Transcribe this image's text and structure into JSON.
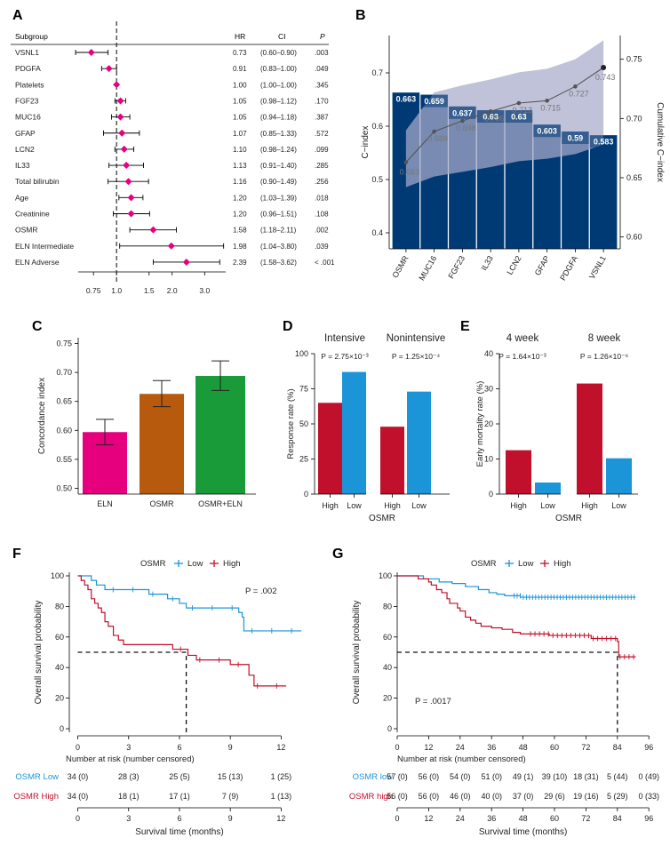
{
  "colors": {
    "navy": "#003a75",
    "magenta": "#e6007e",
    "orange": "#b85a0d",
    "green": "#1a9b3a",
    "red": "#c0102b",
    "blue": "#1b95d8",
    "band": "#a8aacb",
    "grey": "#555555"
  },
  "panels": {
    "A": "A",
    "B": "B",
    "C": "C",
    "D": "D",
    "E": "E",
    "F": "F",
    "G": "G"
  },
  "forest": {
    "headers": {
      "subgroup": "Subgroup",
      "hr": "HR",
      "ci": "CI",
      "p": "P"
    },
    "rows": [
      {
        "name": "VSNL1",
        "hr": 0.73,
        "lo": 0.6,
        "hi": 0.9,
        "hr_text": "0.73",
        "ci_text": "(0.60–0.90)",
        "p_text": ".003"
      },
      {
        "name": "PDGFA",
        "hr": 0.91,
        "lo": 0.83,
        "hi": 1.0,
        "hr_text": "0.91",
        "ci_text": "(0.83–1.00)",
        "p_text": ".049"
      },
      {
        "name": "Platelets",
        "hr": 1.0,
        "lo": 1.0,
        "hi": 1.0,
        "hr_text": "1.00",
        "ci_text": "(1.00–1.00)",
        "p_text": ".345"
      },
      {
        "name": "FGF23",
        "hr": 1.05,
        "lo": 0.98,
        "hi": 1.12,
        "hr_text": "1.05",
        "ci_text": "(0.98–1.12)",
        "p_text": ".170"
      },
      {
        "name": "MUC16",
        "hr": 1.05,
        "lo": 0.94,
        "hi": 1.18,
        "hr_text": "1.05",
        "ci_text": "(0.94–1.18)",
        "p_text": ".387"
      },
      {
        "name": "GFAP",
        "hr": 1.07,
        "lo": 0.85,
        "hi": 1.33,
        "hr_text": "1.07",
        "ci_text": "(0.85–1.33)",
        "p_text": ".572"
      },
      {
        "name": "LCN2",
        "hr": 1.1,
        "lo": 0.98,
        "hi": 1.24,
        "hr_text": "1.10",
        "ci_text": "(0.98–1.24)",
        "p_text": ".099"
      },
      {
        "name": "IL33",
        "hr": 1.13,
        "lo": 0.91,
        "hi": 1.4,
        "hr_text": "1.13",
        "ci_text": "(0.91–1.40)",
        "p_text": ".285"
      },
      {
        "name": "Total bilirubin",
        "hr": 1.16,
        "lo": 0.9,
        "hi": 1.49,
        "hr_text": "1.16",
        "ci_text": "(0.90–1.49)",
        "p_text": ".256"
      },
      {
        "name": "Age",
        "hr": 1.2,
        "lo": 1.03,
        "hi": 1.39,
        "hr_text": "1.20",
        "ci_text": "(1.03–1.39)",
        "p_text": ".018"
      },
      {
        "name": "Creatinine",
        "hr": 1.2,
        "lo": 0.96,
        "hi": 1.51,
        "hr_text": "1.20",
        "ci_text": "(0.96–1.51)",
        "p_text": ".108"
      },
      {
        "name": "OSMR",
        "hr": 1.58,
        "lo": 1.18,
        "hi": 2.11,
        "hr_text": "1.58",
        "ci_text": "(1.18–2.11)",
        "p_text": ".002"
      },
      {
        "name": "ELN Intermediate",
        "hr": 1.98,
        "lo": 1.04,
        "hi": 3.8,
        "hr_text": "1.98",
        "ci_text": "(1.04–3.80)",
        "p_text": ".039"
      },
      {
        "name": "ELN Adverse",
        "hr": 2.39,
        "lo": 1.58,
        "hi": 3.62,
        "hr_text": "2.39",
        "ci_text": "(1.58–3.62)",
        "p_text": "< .001"
      }
    ],
    "ticks": [
      {
        "v": 0.75,
        "label": "0.75"
      },
      {
        "v": 1.0,
        "label": "1.0"
      },
      {
        "v": 1.5,
        "label": "1.5"
      },
      {
        "v": 2.0,
        "label": "2.0"
      },
      {
        "v": 3.0,
        "label": "3.0"
      }
    ]
  },
  "chart_data": [
    {
      "id": "B",
      "type": "bar",
      "categories": [
        "OSMR",
        "MUC16",
        "FGF23",
        "IL33",
        "LCN2",
        "GFAP",
        "PDGFA",
        "VSNL1"
      ],
      "values": [
        0.663,
        0.659,
        0.637,
        0.63,
        0.63,
        0.603,
        0.59,
        0.583
      ],
      "value_labels": [
        "0.663",
        "0.659",
        "0.637",
        "0.63",
        "0.63",
        "0.603",
        "0.59",
        "0.583"
      ],
      "cumulative": [
        0.663,
        0.689,
        0.698,
        0.706,
        0.713,
        0.715,
        0.727,
        0.743
      ],
      "cumulative_labels": [
        "0.663",
        "0.689",
        "0.698",
        "0.706",
        "0.713",
        "0.715",
        "0.727",
        "0.743"
      ],
      "band_lower": [
        0.642,
        0.651,
        0.655,
        0.659,
        0.664,
        0.666,
        0.67,
        0.678
      ],
      "band_upper": [
        0.69,
        0.722,
        0.728,
        0.733,
        0.739,
        0.742,
        0.75,
        0.766
      ],
      "ylabel": "C−index",
      "y2label": "Cumulative C−index",
      "ylim": [
        0.37,
        0.77
      ],
      "y2lim": [
        0.59,
        0.77
      ],
      "yticks": [
        "0.4",
        "0.5",
        "0.6",
        "0.7"
      ],
      "y2ticks": [
        "0.60",
        "0.65",
        "0.70",
        "0.75"
      ]
    },
    {
      "id": "C",
      "type": "bar",
      "categories": [
        "ELN",
        "OSMR",
        "OSMR+ELN"
      ],
      "values": [
        0.597,
        0.663,
        0.694
      ],
      "err_lo": [
        0.575,
        0.641,
        0.669
      ],
      "err_hi": [
        0.619,
        0.686,
        0.72
      ],
      "ylabel": "Concordance index",
      "ylim": [
        0.49,
        0.76
      ],
      "yticks": [
        "0.50",
        "0.55",
        "0.60",
        "0.65",
        "0.70",
        "0.75"
      ]
    },
    {
      "id": "D",
      "type": "bar",
      "groups": [
        "Intensive",
        "Nonintensive"
      ],
      "pvals": [
        "P = 2.75×10⁻³",
        "P = 1.25×10⁻⁴"
      ],
      "categories": [
        "High",
        "Low",
        "High",
        "Low"
      ],
      "values": [
        65,
        87,
        48,
        73
      ],
      "ylabel": "Response rate (%)",
      "xlabel": "OSMR",
      "ylim": [
        0,
        100
      ],
      "yticks": [
        "0",
        "25",
        "50",
        "75",
        "100"
      ]
    },
    {
      "id": "E",
      "type": "bar",
      "groups": [
        "4 week",
        "8 week"
      ],
      "pvals": [
        "P = 1.64×10⁻³",
        "P = 1.26×10⁻⁶"
      ],
      "categories": [
        "High",
        "Low",
        "High",
        "Low"
      ],
      "values": [
        12.5,
        3.3,
        31.5,
        10.2
      ],
      "ylabel": "Early mortality rate (%)",
      "xlabel": "OSMR",
      "ylim": [
        0,
        40
      ],
      "yticks": [
        "0",
        "10",
        "20",
        "30",
        "40"
      ]
    },
    {
      "id": "F",
      "type": "line",
      "title": "OSMR",
      "legend": [
        "Low",
        "High"
      ],
      "pval": "P = .002",
      "xlabel": "Survival time (months)",
      "ylabel": "Overall survival probability",
      "xlim": [
        -0.5,
        13.5
      ],
      "ylim": [
        0,
        100
      ],
      "xticks": [
        "0",
        "3",
        "6",
        "9",
        "12"
      ],
      "yticks": [
        "0",
        "20",
        "40",
        "60",
        "80",
        "100"
      ],
      "median_x": 6.4,
      "series": [
        {
          "name": "Low",
          "steps": [
            [
              0,
              100
            ],
            [
              0.8,
              97
            ],
            [
              1.1,
              94
            ],
            [
              1.6,
              91
            ],
            [
              4.2,
              88
            ],
            [
              5.3,
              85
            ],
            [
              6.0,
              82
            ],
            [
              6.4,
              79
            ],
            [
              9.5,
              76
            ],
            [
              9.7,
              73
            ],
            [
              9.8,
              64
            ],
            [
              13.2,
              64
            ]
          ]
        },
        {
          "name": "High",
          "steps": [
            [
              0,
              100
            ],
            [
              0.2,
              97
            ],
            [
              0.4,
              94
            ],
            [
              0.6,
              91
            ],
            [
              0.8,
              85
            ],
            [
              1.0,
              82
            ],
            [
              1.2,
              79
            ],
            [
              1.4,
              76
            ],
            [
              1.6,
              70
            ],
            [
              1.8,
              67
            ],
            [
              2.1,
              61
            ],
            [
              2.4,
              58
            ],
            [
              2.7,
              55
            ],
            [
              5.6,
              52
            ],
            [
              6.5,
              48
            ],
            [
              7.0,
              45
            ],
            [
              9.0,
              42
            ],
            [
              10.1,
              35
            ],
            [
              10.4,
              28
            ],
            [
              12.3,
              28
            ]
          ]
        }
      ]
    },
    {
      "id": "G",
      "type": "line",
      "title": "OSMR",
      "legend": [
        "Low",
        "High"
      ],
      "pval": "P = .0017",
      "xlabel": "Survival time (months)",
      "ylabel": "Overall survival probability",
      "xlim": [
        0,
        100
      ],
      "ylim": [
        0,
        100
      ],
      "xticks": [
        "0",
        "12",
        "24",
        "36",
        "48",
        "60",
        "72",
        "84",
        "96"
      ],
      "yticks": [
        "0",
        "20",
        "40",
        "60",
        "80",
        "100"
      ],
      "median_x": 84,
      "series": [
        {
          "name": "Low",
          "steps": [
            [
              0,
              100
            ],
            [
              10,
              98
            ],
            [
              16,
              96
            ],
            [
              21,
              95
            ],
            [
              26,
              93
            ],
            [
              31,
              91
            ],
            [
              35,
              89
            ],
            [
              38,
              88
            ],
            [
              41,
              87
            ],
            [
              47,
              86
            ],
            [
              91,
              86
            ]
          ]
        },
        {
          "name": "High",
          "steps": [
            [
              0,
              100
            ],
            [
              8,
              98
            ],
            [
              12,
              96
            ],
            [
              13,
              94
            ],
            [
              15,
              91
            ],
            [
              17,
              89
            ],
            [
              19,
              85
            ],
            [
              20,
              82
            ],
            [
              23,
              79
            ],
            [
              24,
              77
            ],
            [
              26,
              73
            ],
            [
              28,
              71
            ],
            [
              30,
              69
            ],
            [
              32,
              67
            ],
            [
              36,
              66
            ],
            [
              40,
              65
            ],
            [
              44,
              63
            ],
            [
              47,
              62
            ],
            [
              58,
              61
            ],
            [
              74,
              59
            ],
            [
              84,
              57
            ],
            [
              84.5,
              47
            ],
            [
              91,
              47
            ]
          ]
        }
      ]
    }
  ],
  "risk_table_F": {
    "title": "Number at risk (number censored)",
    "low_label": "OSMR Low",
    "high_label": "OSMR High",
    "low": [
      "34 (0)",
      "28 (3)",
      "25 (5)",
      "15 (13)",
      "1 (25)"
    ],
    "high": [
      "34 (0)",
      "18 (1)",
      "17 (1)",
      "7 (9)",
      "1 (13)"
    ],
    "ticks": [
      "0",
      "3",
      "6",
      "9",
      "12"
    ],
    "xlabel": "Survival time (months)"
  },
  "risk_table_G": {
    "title": "Number at risk (number censored)",
    "low_label": "OSMR low",
    "high_label": "OSMR high",
    "low": [
      "57 (0)",
      "56 (0)",
      "54 (0)",
      "51 (0)",
      "49 (1)",
      "39 (10)",
      "18 (31)",
      "5 (44)",
      "0 (49)"
    ],
    "high": [
      "56 (0)",
      "56 (0)",
      "46 (0)",
      "40 (0)",
      "37 (0)",
      "29 (6)",
      "19 (16)",
      "5 (29)",
      "0 (33)"
    ],
    "ticks": [
      "0",
      "12",
      "24",
      "36",
      "48",
      "60",
      "72",
      "84",
      "96"
    ],
    "xlabel": "Survival time (months)"
  }
}
